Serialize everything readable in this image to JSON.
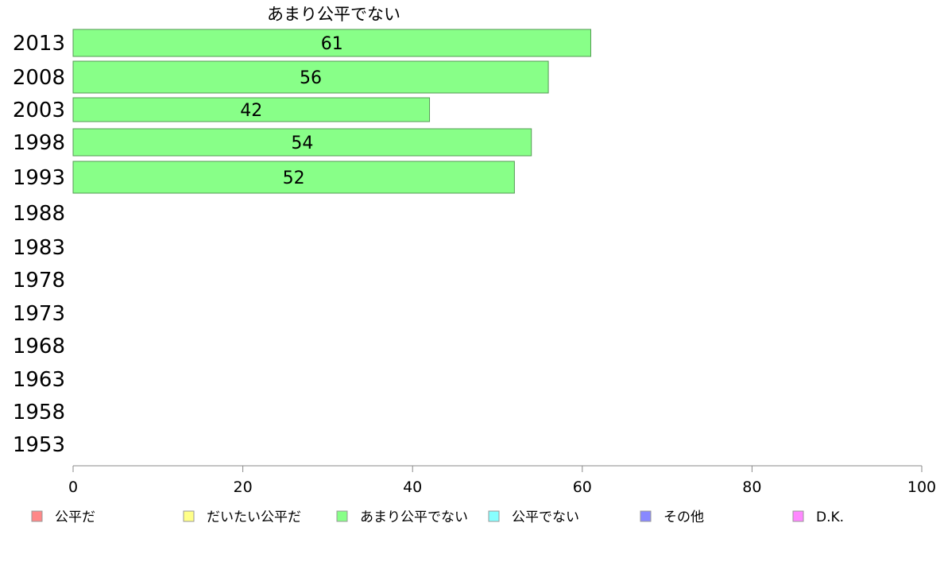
{
  "chart_data": {
    "type": "bar",
    "orientation": "horizontal",
    "title": "あまり公平でない",
    "categories": [
      "2013",
      "2008",
      "2003",
      "1998",
      "1993",
      "1988",
      "1983",
      "1978",
      "1973",
      "1968",
      "1963",
      "1958",
      "1953"
    ],
    "series": [
      {
        "name": "あまり公平でない",
        "values": [
          61,
          56,
          42,
          54,
          52,
          null,
          null,
          null,
          null,
          null,
          null,
          null,
          null
        ]
      }
    ],
    "xlim": [
      0,
      100
    ],
    "xticks": [
      0,
      20,
      40,
      60,
      80,
      100
    ],
    "bar_color": "#88ff88",
    "bar_edge_color": "#559955",
    "legend": {
      "position": "bottom",
      "items": [
        {
          "label": "公平だ",
          "color": "#ff8888"
        },
        {
          "label": "だいたい公平だ",
          "color": "#ffff88"
        },
        {
          "label": "あまり公平でない",
          "color": "#88ff88"
        },
        {
          "label": "公平でない",
          "color": "#88ffff"
        },
        {
          "label": "その他",
          "color": "#8888ff"
        },
        {
          "label": "D.K.",
          "color": "#ff88ff"
        }
      ]
    }
  }
}
